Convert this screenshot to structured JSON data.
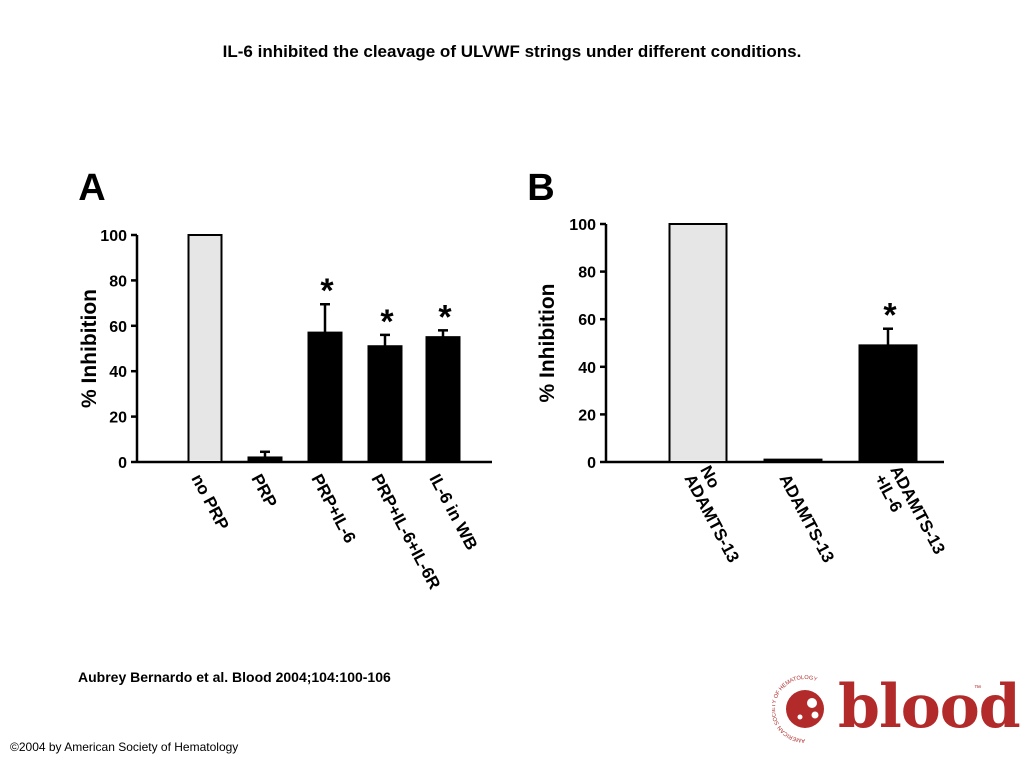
{
  "title": "IL-6 inhibited the cleavage of ULVWF strings under different conditions.",
  "citation": "Aubrey Bernardo et al. Blood 2004;104:100-106",
  "copyright": "©2004 by American Society of Hematology",
  "logo": {
    "word": "blood",
    "tm": "™",
    "seal_text": "AMERICAN SOCIETY OF HEMATOLOGY",
    "color": "#b22a2a"
  },
  "chart_data": [
    {
      "type": "bar",
      "panel_label": "A",
      "ylabel": "% Inhibition",
      "ylim": [
        0,
        100
      ],
      "yticks": [
        0,
        20,
        40,
        60,
        80,
        100
      ],
      "categories": [
        "no PRP",
        "PRP",
        "PRP+IL-6",
        "PRP+IL-6+IL-6R",
        "IL-6 in WB"
      ],
      "values": [
        100,
        2,
        57,
        51,
        55
      ],
      "errors": [
        0,
        2.5,
        12.5,
        5,
        3
      ],
      "significance": [
        "",
        "",
        "*",
        "*",
        "*"
      ],
      "bar_colors": [
        "#e6e6e6",
        "#000000",
        "#000000",
        "#000000",
        "#000000"
      ]
    },
    {
      "type": "bar",
      "panel_label": "B",
      "ylabel": "% Inhibition",
      "ylim": [
        0,
        100
      ],
      "yticks": [
        0,
        20,
        40,
        60,
        80,
        100
      ],
      "categories": [
        "No\nADAMTS-13",
        "ADAMTS-13",
        "ADAMTS-13\n+IL-6"
      ],
      "values": [
        100,
        1,
        49
      ],
      "errors": [
        0,
        0,
        7
      ],
      "significance": [
        "",
        "",
        "*"
      ],
      "bar_colors": [
        "#e6e6e6",
        "#000000",
        "#000000"
      ]
    }
  ]
}
